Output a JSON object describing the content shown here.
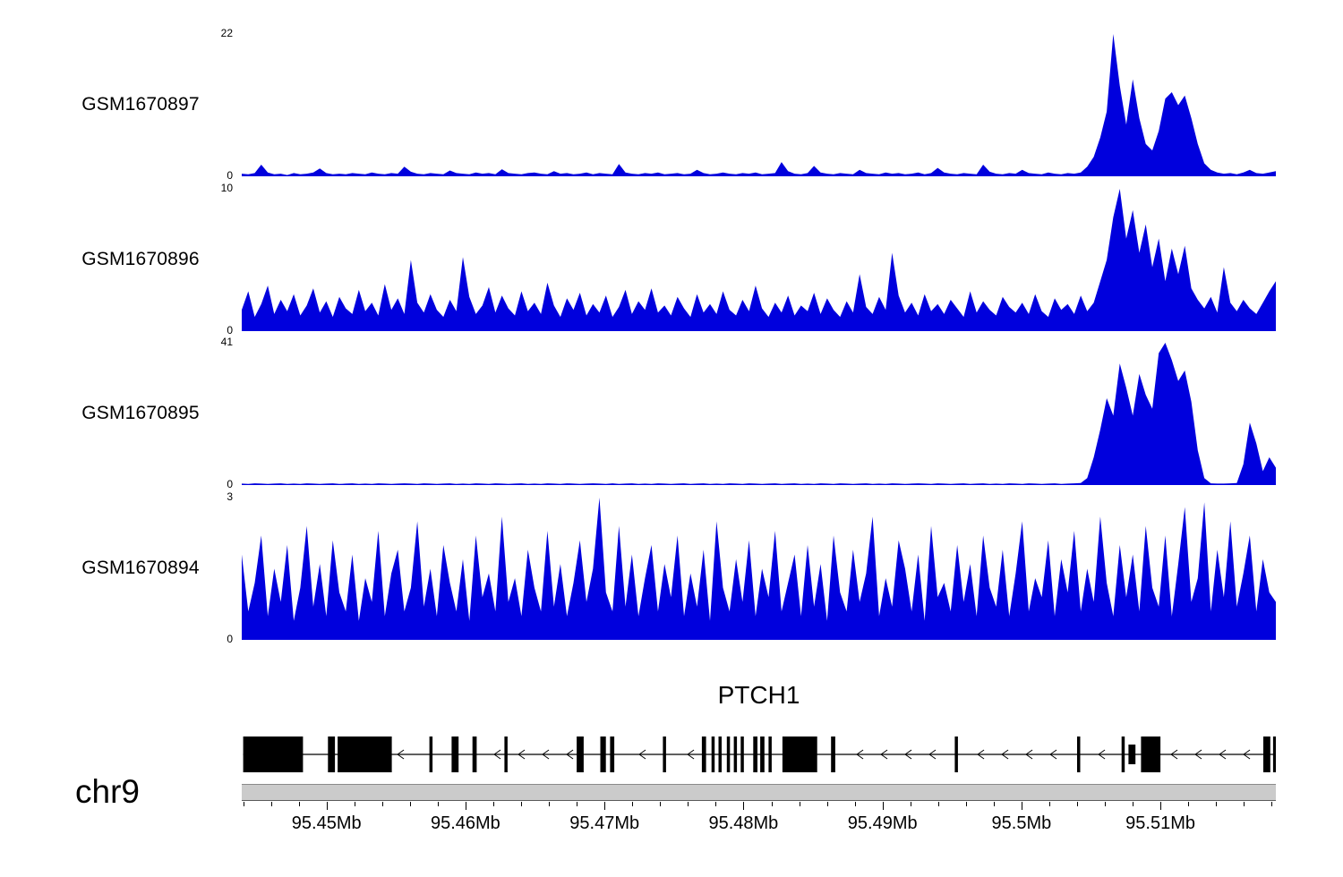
{
  "chart_data": {
    "type": "area",
    "description": "Genome browser read-coverage tracks over the PTCH1 locus",
    "track_color": "#0000dd",
    "chromosome": "chr9",
    "x_range_mb": [
      95.4439,
      95.5183
    ],
    "x_axis": {
      "unit": "Mb",
      "ticks_mb": [
        95.45,
        95.46,
        95.47,
        95.48,
        95.49,
        95.5,
        95.51
      ],
      "tick_labels": [
        "95.45Mb",
        "95.46Mb",
        "95.47Mb",
        "95.48Mb",
        "95.49Mb",
        "95.5Mb",
        "95.51Mb"
      ],
      "minor_tick_step_mb": 0.002
    },
    "gene_track": {
      "gene_name": "PTCH1",
      "strand": "-",
      "exons_mb": [
        [
          95.444,
          95.4483,
          "tall"
        ],
        [
          95.4501,
          95.4506,
          "tall"
        ],
        [
          95.4508,
          95.4547,
          "tall"
        ],
        [
          95.4574,
          95.4576,
          "tall"
        ],
        [
          95.459,
          95.4595,
          "tall"
        ],
        [
          95.4605,
          95.4608,
          "tall"
        ],
        [
          95.4628,
          95.463,
          "tall"
        ],
        [
          95.468,
          95.4685,
          "tall"
        ],
        [
          95.4697,
          95.4701,
          "tall"
        ],
        [
          95.4704,
          95.4707,
          "tall"
        ],
        [
          95.4742,
          95.4744,
          "tall"
        ],
        [
          95.477,
          95.4773,
          "tall"
        ],
        [
          95.4777,
          95.4779,
          "tall"
        ],
        [
          95.4782,
          95.4784,
          "tall"
        ],
        [
          95.4788,
          95.479,
          "tall"
        ],
        [
          95.4793,
          95.4795,
          "tall"
        ],
        [
          95.4798,
          95.48,
          "tall"
        ],
        [
          95.4807,
          95.481,
          "tall"
        ],
        [
          95.4812,
          95.4815,
          "tall"
        ],
        [
          95.4818,
          95.482,
          "tall"
        ],
        [
          95.4828,
          95.4853,
          "tall"
        ],
        [
          95.4863,
          95.4866,
          "tall"
        ],
        [
          95.4952,
          95.4954,
          "tall"
        ],
        [
          95.504,
          95.5042,
          "tall"
        ],
        [
          95.5072,
          95.5074,
          "tall"
        ],
        [
          95.5077,
          95.5082,
          "short"
        ],
        [
          95.5086,
          95.51,
          "tall"
        ],
        [
          95.5174,
          95.5179,
          "tall"
        ],
        [
          95.5181,
          95.5183,
          "tall"
        ]
      ]
    },
    "tracks": [
      {
        "name": "GSM1670897",
        "ymax": 22,
        "ymax_label": "22",
        "ymin_label": "0",
        "values": [
          0.4,
          0.3,
          0.5,
          1.8,
          0.6,
          0.3,
          0.4,
          0.2,
          0.5,
          0.3,
          0.4,
          0.6,
          1.2,
          0.5,
          0.3,
          0.4,
          0.3,
          0.5,
          0.4,
          0.3,
          0.6,
          0.4,
          0.3,
          0.5,
          0.4,
          1.5,
          0.7,
          0.4,
          0.3,
          0.5,
          0.4,
          0.3,
          0.9,
          0.5,
          0.4,
          0.3,
          0.6,
          0.4,
          0.5,
          0.3,
          1.1,
          0.5,
          0.4,
          0.3,
          0.5,
          0.6,
          0.4,
          0.3,
          0.8,
          0.4,
          0.5,
          0.3,
          0.4,
          0.6,
          0.3,
          0.5,
          0.4,
          0.3,
          1.9,
          0.6,
          0.4,
          0.3,
          0.5,
          0.4,
          0.6,
          0.3,
          0.4,
          0.5,
          0.3,
          0.4,
          1.0,
          0.5,
          0.3,
          0.4,
          0.6,
          0.4,
          0.3,
          0.5,
          0.4,
          0.6,
          0.3,
          0.4,
          0.5,
          2.2,
          0.8,
          0.4,
          0.3,
          0.5,
          1.6,
          0.6,
          0.4,
          0.3,
          0.5,
          0.4,
          0.3,
          1.0,
          0.5,
          0.4,
          0.3,
          0.6,
          0.4,
          0.5,
          0.3,
          0.4,
          0.6,
          0.3,
          0.5,
          1.3,
          0.6,
          0.4,
          0.3,
          0.5,
          0.4,
          0.3,
          1.8,
          0.7,
          0.4,
          0.3,
          0.5,
          0.4,
          1.0,
          0.5,
          0.4,
          0.3,
          0.6,
          0.4,
          0.3,
          0.5,
          0.4,
          0.6,
          1.5,
          3.0,
          6.0,
          10.0,
          22.0,
          14.0,
          8.0,
          15.0,
          9.0,
          5.0,
          4.0,
          7.0,
          12.0,
          13.0,
          11.0,
          12.5,
          9.0,
          5.0,
          2.0,
          1.0,
          0.6,
          0.4,
          0.5,
          0.3,
          0.6,
          1.0,
          0.5,
          0.4,
          0.6,
          0.8
        ]
      },
      {
        "name": "GSM1670896",
        "ymax": 10,
        "ymax_label": "10",
        "ymin_label": "0",
        "values": [
          1.5,
          2.8,
          1.0,
          1.9,
          3.2,
          1.2,
          2.2,
          1.4,
          2.6,
          1.1,
          1.8,
          3.0,
          1.3,
          2.1,
          1.0,
          2.4,
          1.6,
          1.2,
          2.9,
          1.4,
          2.0,
          1.1,
          3.3,
          1.5,
          2.3,
          1.2,
          5.0,
          2.0,
          1.3,
          2.6,
          1.5,
          1.0,
          2.2,
          1.4,
          5.2,
          2.4,
          1.2,
          1.8,
          3.1,
          1.3,
          2.5,
          1.6,
          1.1,
          2.8,
          1.4,
          2.0,
          1.2,
          3.4,
          1.8,
          1.0,
          2.3,
          1.5,
          2.7,
          1.1,
          1.9,
          1.3,
          2.5,
          1.0,
          1.7,
          2.9,
          1.2,
          2.1,
          1.5,
          3.0,
          1.3,
          1.8,
          1.1,
          2.4,
          1.6,
          1.0,
          2.6,
          1.3,
          1.9,
          1.2,
          2.8,
          1.5,
          1.1,
          2.2,
          1.4,
          3.2,
          1.6,
          1.0,
          2.0,
          1.3,
          2.5,
          1.1,
          1.8,
          1.4,
          2.7,
          1.2,
          2.3,
          1.5,
          1.0,
          2.1,
          1.3,
          4.0,
          1.7,
          1.2,
          2.4,
          1.5,
          5.5,
          2.5,
          1.3,
          2.0,
          1.1,
          2.6,
          1.4,
          1.9,
          1.2,
          2.2,
          1.6,
          1.0,
          2.8,
          1.3,
          2.1,
          1.5,
          1.1,
          2.4,
          1.7,
          1.3,
          2.0,
          1.2,
          2.6,
          1.4,
          1.0,
          2.3,
          1.5,
          1.9,
          1.2,
          2.5,
          1.4,
          2.0,
          3.5,
          5.0,
          8.0,
          10.0,
          6.5,
          8.5,
          5.5,
          7.5,
          4.5,
          6.5,
          3.5,
          5.8,
          4.0,
          6.0,
          3.0,
          2.2,
          1.6,
          2.4,
          1.3,
          4.5,
          2.0,
          1.4,
          2.2,
          1.6,
          1.2,
          2.0,
          2.8,
          3.5
        ]
      },
      {
        "name": "GSM1670895",
        "ymax": 41,
        "ymax_label": "41",
        "ymin_label": "0",
        "values": [
          0.4,
          0.3,
          0.5,
          0.4,
          0.3,
          0.4,
          0.5,
          0.3,
          0.4,
          0.3,
          0.5,
          0.4,
          0.3,
          0.4,
          0.5,
          0.3,
          0.4,
          0.5,
          0.3,
          0.4,
          0.3,
          0.5,
          0.4,
          0.3,
          0.4,
          0.5,
          0.4,
          0.3,
          0.5,
          0.4,
          0.3,
          0.4,
          0.5,
          0.3,
          0.4,
          0.3,
          0.5,
          0.4,
          0.3,
          0.5,
          0.4,
          0.3,
          0.4,
          0.5,
          0.3,
          0.4,
          0.3,
          0.5,
          0.4,
          0.3,
          0.5,
          0.4,
          0.3,
          0.4,
          0.5,
          0.4,
          0.3,
          0.5,
          0.3,
          0.4,
          0.5,
          0.3,
          0.4,
          0.3,
          0.5,
          0.4,
          0.3,
          0.4,
          0.5,
          0.3,
          0.4,
          0.5,
          0.3,
          0.4,
          0.3,
          0.5,
          0.4,
          0.3,
          0.5,
          0.4,
          0.3,
          0.4,
          0.5,
          0.3,
          0.4,
          0.5,
          0.3,
          0.4,
          0.3,
          0.5,
          0.4,
          0.3,
          0.5,
          0.4,
          0.3,
          0.4,
          0.5,
          0.3,
          0.4,
          0.3,
          0.5,
          0.4,
          0.3,
          0.4,
          0.5,
          0.4,
          0.3,
          0.5,
          0.4,
          0.3,
          0.4,
          0.5,
          0.3,
          0.4,
          0.5,
          0.3,
          0.4,
          0.3,
          0.5,
          0.4,
          0.3,
          0.5,
          0.4,
          0.3,
          0.4,
          0.5,
          0.3,
          0.4,
          0.5,
          0.6,
          2.0,
          8.0,
          16.0,
          25.0,
          20.0,
          35.0,
          28.0,
          20.0,
          32.0,
          26.0,
          22.0,
          38.0,
          41.0,
          36.0,
          30.0,
          33.0,
          24.0,
          10.0,
          2.0,
          0.5,
          0.4,
          0.4,
          0.5,
          0.6,
          6.0,
          18.0,
          12.0,
          4.0,
          8.0,
          5.0
        ]
      },
      {
        "name": "GSM1670894",
        "ymax": 3,
        "ymax_label": "3",
        "ymin_label": "0",
        "values": [
          1.8,
          0.6,
          1.2,
          2.2,
          0.5,
          1.5,
          0.8,
          2.0,
          0.4,
          1.1,
          2.4,
          0.7,
          1.6,
          0.5,
          2.1,
          1.0,
          0.6,
          1.8,
          0.4,
          1.3,
          0.8,
          2.3,
          0.5,
          1.4,
          1.9,
          0.6,
          1.1,
          2.5,
          0.7,
          1.5,
          0.5,
          2.0,
          1.2,
          0.6,
          1.7,
          0.4,
          2.2,
          0.9,
          1.4,
          0.6,
          2.6,
          0.8,
          1.3,
          0.5,
          1.9,
          1.1,
          0.6,
          2.3,
          0.7,
          1.6,
          0.5,
          1.2,
          2.1,
          0.8,
          1.5,
          3.0,
          1.0,
          0.6,
          2.4,
          0.7,
          1.8,
          0.5,
          1.3,
          2.0,
          0.6,
          1.6,
          0.9,
          2.2,
          0.5,
          1.4,
          0.7,
          1.9,
          0.4,
          2.5,
          1.1,
          0.6,
          1.7,
          0.8,
          2.1,
          0.5,
          1.5,
          0.9,
          2.3,
          0.6,
          1.2,
          1.8,
          0.5,
          2.0,
          0.7,
          1.6,
          0.4,
          2.2,
          1.0,
          0.6,
          1.9,
          0.8,
          1.4,
          2.6,
          0.5,
          1.3,
          0.7,
          2.1,
          1.5,
          0.6,
          1.8,
          0.4,
          2.4,
          0.9,
          1.2,
          0.6,
          2.0,
          0.8,
          1.6,
          0.5,
          2.2,
          1.1,
          0.7,
          1.9,
          0.5,
          1.4,
          2.5,
          0.6,
          1.3,
          0.9,
          2.1,
          0.5,
          1.7,
          1.0,
          2.3,
          0.6,
          1.5,
          0.8,
          2.6,
          1.2,
          0.5,
          2.0,
          0.9,
          1.8,
          0.6,
          2.4,
          1.1,
          0.7,
          2.2,
          0.5,
          1.6,
          2.8,
          0.8,
          1.3,
          2.9,
          0.6,
          1.9,
          0.9,
          2.5,
          0.7,
          1.4,
          2.2,
          0.6,
          1.7,
          1.0,
          0.8
        ]
      }
    ]
  }
}
